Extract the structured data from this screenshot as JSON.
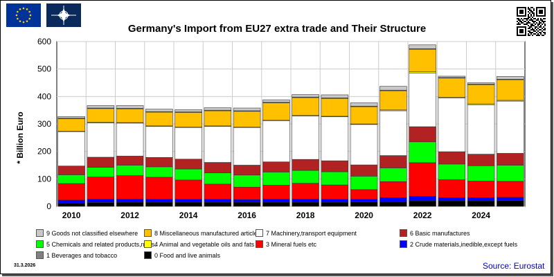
{
  "header": {
    "eu_flag_icon": "eu-flag-icon",
    "nato_flag_icon": "nato-flag-icon",
    "qr_icon": "qr-code-icon"
  },
  "footer": {
    "date": "31.3.2026",
    "source": "Source: Eurostat"
  },
  "chart_data": {
    "type": "bar",
    "stacked": true,
    "title": "Germany's Import from EU27 extra trade and Their Structure",
    "ylabel": "* Billion Euro",
    "xlabel": "",
    "ylim": [
      0,
      600
    ],
    "yticks": [
      0,
      100,
      200,
      300,
      400,
      500,
      600
    ],
    "x": [
      2010,
      2011,
      2012,
      2013,
      2014,
      2015,
      2016,
      2017,
      2018,
      2019,
      2020,
      2021,
      2022,
      2023,
      2024,
      2025
    ],
    "xtick_labels": [
      "2010",
      "2012",
      "2014",
      "2016",
      "2018",
      "2020",
      "2022",
      "2024"
    ],
    "grid": true,
    "series": [
      {
        "name": "0 Food and live animals",
        "color": "#000000",
        "values": [
          12,
          14,
          15,
          15,
          15,
          15,
          15,
          15,
          15,
          15,
          16,
          17,
          20,
          20,
          20,
          21
        ]
      },
      {
        "name": "2 Crude materials,inedible,except fuels",
        "color": "#0000ff",
        "values": [
          11,
          13,
          12,
          11,
          11,
          11,
          10,
          12,
          12,
          11,
          10,
          15,
          17,
          12,
          12,
          12
        ]
      },
      {
        "name": "3 Mineral fuels etc",
        "color": "#ff0000",
        "values": [
          60,
          80,
          85,
          80,
          70,
          55,
          45,
          50,
          57,
          52,
          35,
          58,
          122,
          65,
          60,
          58
        ]
      },
      {
        "name": "5 Chemicals and related products,n.e.s.",
        "color": "#00ff00",
        "values": [
          32,
          35,
          38,
          38,
          40,
          41,
          44,
          48,
          47,
          48,
          49,
          50,
          76,
          57,
          56,
          59
        ]
      },
      {
        "name": "6 Basic manufactures",
        "color": "#b22222",
        "values": [
          32,
          37,
          33,
          34,
          36,
          38,
          36,
          37,
          40,
          40,
          41,
          45,
          55,
          45,
          42,
          43
        ]
      },
      {
        "name": "7 Machinery,transport equipment",
        "color": "#ffffff",
        "values": [
          125,
          125,
          120,
          113,
          115,
          131,
          137,
          150,
          158,
          160,
          147,
          163,
          195,
          195,
          180,
          190
        ]
      },
      {
        "name": "4 Animal and vegetable oils and fats",
        "color": "#ffff00",
        "values": [
          2,
          2,
          2,
          2,
          2,
          2,
          2,
          2,
          2,
          2,
          2,
          3,
          5,
          3,
          3,
          3
        ]
      },
      {
        "name": "8 Miscellaneous manufactured articles",
        "color": "#ffc000",
        "values": [
          45,
          50,
          50,
          50,
          53,
          55,
          57,
          63,
          65,
          65,
          63,
          70,
          82,
          70,
          70,
          75
        ]
      },
      {
        "name": "1 Beverages and tobacco",
        "color": "#808080",
        "values": [
          2,
          2,
          2,
          2,
          2,
          2,
          2,
          2,
          2,
          2,
          2,
          2,
          2,
          2,
          2,
          2
        ]
      },
      {
        "name": "9 Goods not classified elsewhere",
        "color": "#c8c8c8",
        "values": [
          6,
          9,
          10,
          9,
          8,
          9,
          10,
          9,
          9,
          11,
          12,
          14,
          14,
          5,
          5,
          10
        ]
      }
    ],
    "legend": {
      "placement": "bottom",
      "rows": [
        [
          "9 Goods not classified elsewhere",
          "8 Miscellaneous manufactured articles",
          "7 Machinery,transport equipment",
          "6 Basic manufactures"
        ],
        [
          "5 Chemicals and related products,n.e.s.",
          "4 Animal and vegetable oils and fats",
          "3 Mineral fuels etc",
          "2 Crude materials,inedible,except fuels"
        ],
        [
          "1 Beverages and tobacco",
          "0 Food and live animals"
        ]
      ]
    }
  }
}
